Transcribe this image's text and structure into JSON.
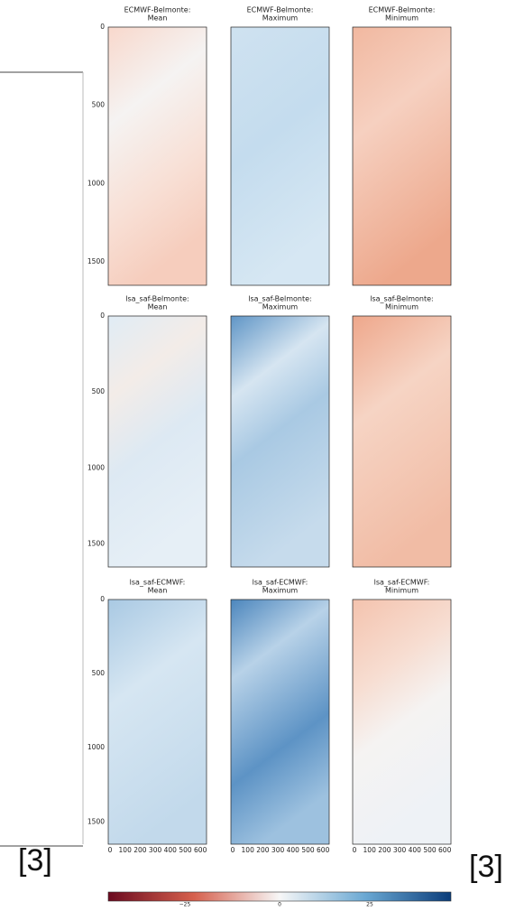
{
  "rows": [
    {
      "panels": [
        {
          "title": [
            "ECMWF-Belmonte:",
            "Mean"
          ]
        },
        {
          "title": [
            "ECMWF-Belmonte:",
            "Maximum"
          ]
        },
        {
          "title": [
            "ECMWF-Belmonte:",
            "Minimum"
          ]
        }
      ],
      "yticks": [
        "0",
        "500",
        "1000",
        "1500"
      ]
    },
    {
      "panels": [
        {
          "title": [
            "lsa_saf-Belmonte:",
            "Mean"
          ]
        },
        {
          "title": [
            "lsa_saf-Belmonte:",
            "Maximum"
          ]
        },
        {
          "title": [
            "lsa_saf-Belmonte:",
            "Minimum"
          ]
        }
      ],
      "yticks": [
        "0",
        "500",
        "1000",
        "1500"
      ]
    },
    {
      "panels": [
        {
          "title": [
            "lsa_saf-ECMWF:",
            "Mean"
          ]
        },
        {
          "title": [
            "lsa_saf-ECMWF:",
            "Maximum"
          ]
        },
        {
          "title": [
            "lsa_saf-ECMWF:",
            "Minimum"
          ]
        }
      ],
      "yticks": [
        "0",
        "500",
        "1000",
        "1500"
      ]
    }
  ],
  "xticks": [
    "0",
    "100",
    "200",
    "300",
    "400",
    "500",
    "600"
  ],
  "colorbar": {
    "ticks": [
      "−25",
      "0",
      "25"
    ]
  },
  "citations": [
    "[3]",
    "[3]"
  ]
}
